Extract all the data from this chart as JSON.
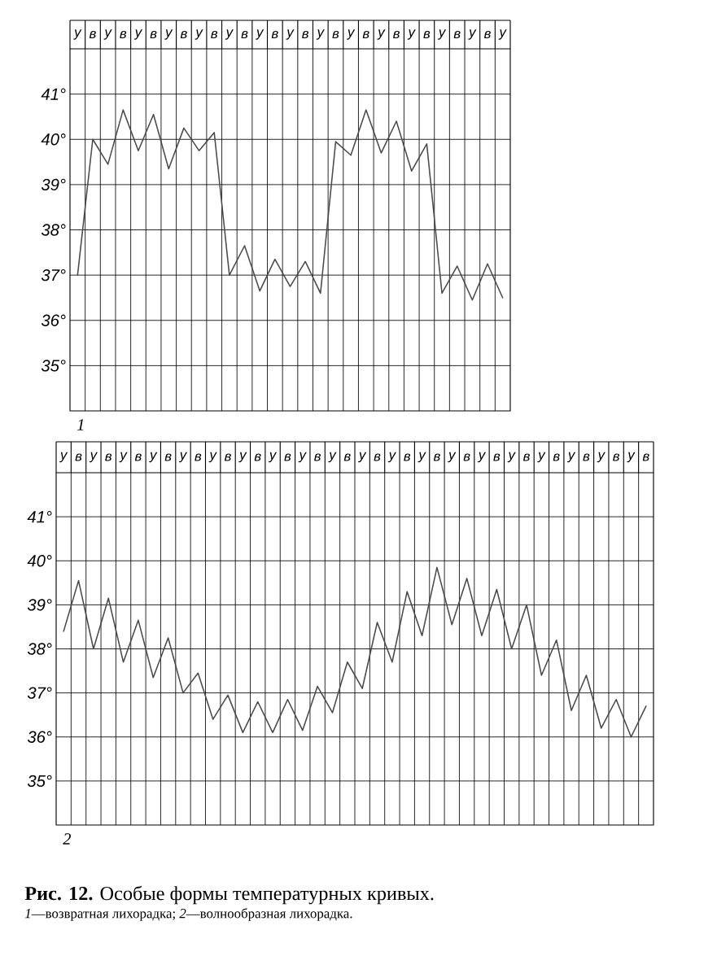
{
  "chart_data": [
    {
      "type": "line",
      "categories": [
        "у",
        "в",
        "у",
        "в",
        "у",
        "в",
        "у",
        "в",
        "у",
        "в",
        "у",
        "в",
        "у",
        "в",
        "у",
        "в",
        "у",
        "в",
        "у",
        "в",
        "у",
        "в",
        "у",
        "в",
        "у",
        "в",
        "у",
        "в",
        "у"
      ],
      "series": [
        {
          "color": "#4a4a4a",
          "values": [
            37.0,
            40.0,
            39.45,
            40.65,
            39.75,
            40.55,
            39.35,
            40.25,
            39.75,
            40.15,
            37.0,
            37.65,
            36.65,
            37.35,
            36.75,
            37.3,
            36.6,
            39.95,
            39.65,
            40.65,
            39.7,
            40.4,
            39.3,
            39.9,
            36.6,
            37.2,
            36.45,
            37.25,
            36.5
          ]
        }
      ],
      "ylim": [
        34,
        42
      ],
      "yticks": [
        {
          "value": 35,
          "label": "35°"
        },
        {
          "value": 36,
          "label": "36°"
        },
        {
          "value": 37,
          "label": "37°"
        },
        {
          "value": 38,
          "label": "38°"
        },
        {
          "value": 39,
          "label": "39°"
        },
        {
          "value": 40,
          "label": "40°"
        },
        {
          "value": 41,
          "label": "41°"
        }
      ],
      "grid": true,
      "annotations": [
        "1"
      ]
    },
    {
      "type": "line",
      "categories": [
        "у",
        "в",
        "у",
        "в",
        "у",
        "в",
        "у",
        "в",
        "у",
        "в",
        "у",
        "в",
        "у",
        "в",
        "у",
        "в",
        "у",
        "в",
        "у",
        "в",
        "у",
        "в",
        "у",
        "в",
        "у",
        "в",
        "у",
        "в",
        "у",
        "в",
        "у",
        "в",
        "у",
        "в",
        "у",
        "в",
        "у",
        "в",
        "у",
        "в"
      ],
      "series": [
        {
          "color": "#4a4a4a",
          "values": [
            38.4,
            39.55,
            38.0,
            39.15,
            37.7,
            38.65,
            37.35,
            38.25,
            37.0,
            37.45,
            36.4,
            36.95,
            36.1,
            36.8,
            36.1,
            36.85,
            36.15,
            37.15,
            36.55,
            37.7,
            37.1,
            38.6,
            37.7,
            39.3,
            38.3,
            39.85,
            38.55,
            39.6,
            38.3,
            39.35,
            38.0,
            39.0,
            37.4,
            38.2,
            36.6,
            37.4,
            36.2,
            36.85,
            36.0,
            36.7
          ]
        }
      ],
      "ylim": [
        34,
        42
      ],
      "yticks": [
        {
          "value": 35,
          "label": "35°"
        },
        {
          "value": 36,
          "label": "36°"
        },
        {
          "value": 37,
          "label": "37°"
        },
        {
          "value": 38,
          "label": "38°"
        },
        {
          "value": 39,
          "label": "39°"
        },
        {
          "value": 40,
          "label": "40°"
        },
        {
          "value": 41,
          "label": "41°"
        }
      ],
      "grid": true,
      "annotations": [
        "2",
        "**Рис. 12.** Особые формы температурных кривых.",
        "*1*—возвратная лихорадка; *2*—волнообразная лихорадка."
      ]
    }
  ]
}
